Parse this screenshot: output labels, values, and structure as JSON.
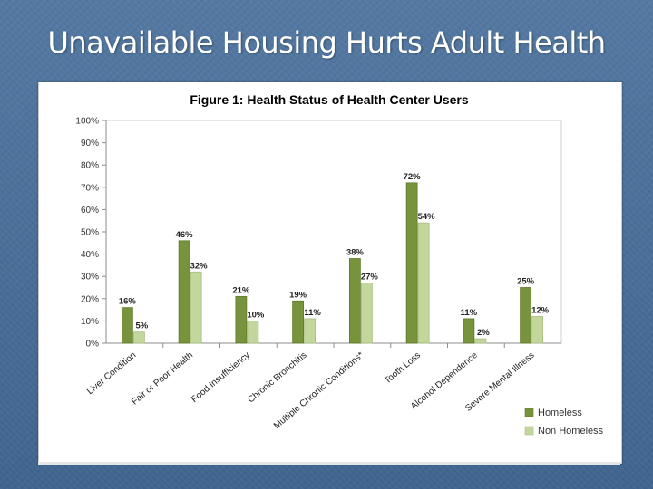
{
  "slide": {
    "title": "Unavailable Housing Hurts Adult Health"
  },
  "chart_data": {
    "type": "bar",
    "title": "Figure 1: Health Status of Health Center Users",
    "categories": [
      "Liver Condition",
      "Fair or Poor Health",
      "Food Insufficiency",
      "Chronic Bronchitis",
      "Multiple Chronic Conditions*",
      "Tooth Loss",
      "Alcohol Dependence",
      "Severe Mental Illness"
    ],
    "series": [
      {
        "name": "Homeless",
        "values": [
          16,
          46,
          21,
          19,
          38,
          72,
          11,
          25
        ],
        "color": "#77933c"
      },
      {
        "name": "Non Homeless",
        "values": [
          5,
          32,
          10,
          11,
          27,
          54,
          2,
          12
        ],
        "color": "#c3d69b"
      }
    ],
    "data_labels": [
      [
        "16%",
        "46%",
        "21%",
        "19%",
        "38%",
        "72%",
        "11%",
        "25%"
      ],
      [
        "5%",
        "32%",
        "10%",
        "11%",
        "27%",
        "54%",
        "2%",
        "12%"
      ]
    ],
    "y_ticks": [
      "0%",
      "10%",
      "20%",
      "30%",
      "40%",
      "50%",
      "60%",
      "70%",
      "80%",
      "90%",
      "100%"
    ],
    "ylim": [
      0,
      100
    ],
    "legend_position": "bottom-right",
    "grid": false
  }
}
